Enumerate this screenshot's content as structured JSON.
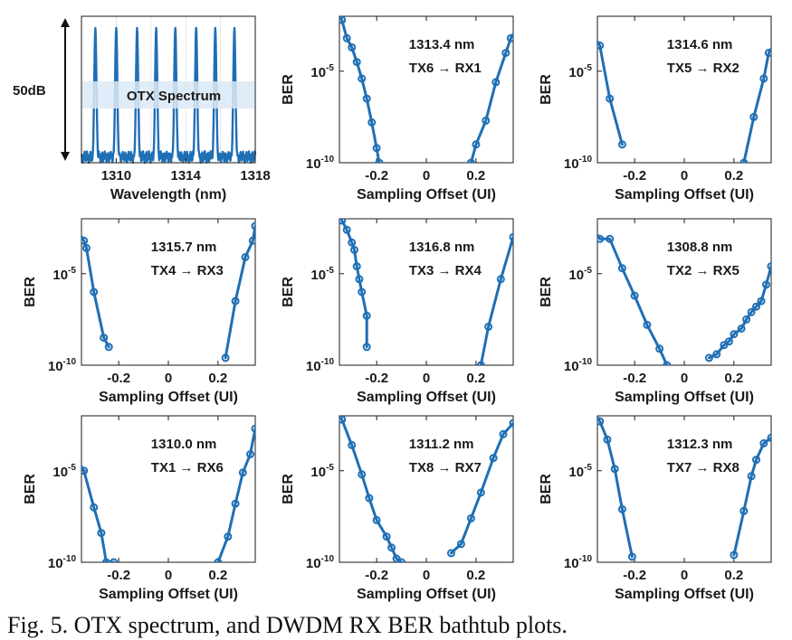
{
  "caption": "Fig. 5. OTX spectrum, and DWDM RX BER bathtub plots.",
  "colors": {
    "series": "#1f6fb5",
    "band": "#dbe9f6",
    "axes": "#1a1a1a"
  },
  "chart_data": [
    {
      "type": "line",
      "annotation": "OTX Spectrum",
      "scale_label": "50dB",
      "xlabel": "Wavelength (nm)",
      "xlim": [
        1308,
        1318
      ],
      "xticks": [
        "1310",
        "1314",
        "1318"
      ],
      "peaks_nm": [
        1308.8,
        1310.0,
        1311.2,
        1312.3,
        1313.4,
        1314.6,
        1315.7,
        1316.8
      ],
      "peak_level_db": 46,
      "floor_level_db": 2,
      "grid": true
    },
    {
      "type": "line",
      "wavelength": "1313.4 nm",
      "link": "TX6 → RX1",
      "xlabel": "Sampling Offset (UI)",
      "ylabel": "BER",
      "xlim": [
        -0.35,
        0.35
      ],
      "ylim_exp": [
        -10,
        -2
      ],
      "log_y": true,
      "xticks": [
        "-0.2",
        "0",
        "0.2"
      ],
      "yticks": [
        "10",
        "10"
      ],
      "ytick_exps": [
        "-5",
        "-10"
      ],
      "left": [
        [
          -0.34,
          -2.2
        ],
        [
          -0.32,
          -3.2
        ],
        [
          -0.3,
          -3.7
        ],
        [
          -0.28,
          -4.5
        ],
        [
          -0.26,
          -5.4
        ],
        [
          -0.24,
          -6.5
        ],
        [
          -0.22,
          -7.8
        ],
        [
          -0.2,
          -9.2
        ],
        [
          -0.19,
          -10.0
        ]
      ],
      "right": [
        [
          0.18,
          -10.0
        ],
        [
          0.2,
          -9.0
        ],
        [
          0.24,
          -7.7
        ],
        [
          0.28,
          -5.6
        ],
        [
          0.32,
          -4.0
        ],
        [
          0.34,
          -3.2
        ]
      ]
    },
    {
      "type": "line",
      "wavelength": "1314.6 nm",
      "link": "TX5 → RX2",
      "xlabel": "Sampling Offset (UI)",
      "ylabel": "BER",
      "xlim": [
        -0.35,
        0.35
      ],
      "ylim_exp": [
        -10,
        -2
      ],
      "log_y": true,
      "xticks": [
        "-0.2",
        "0",
        "0.2"
      ],
      "yticks": [
        "10",
        "10"
      ],
      "ytick_exps": [
        "-5",
        "-10"
      ],
      "left": [
        [
          -0.34,
          -3.6
        ],
        [
          -0.3,
          -6.5
        ],
        [
          -0.25,
          -9.0
        ]
      ],
      "right": [
        [
          0.24,
          -10.0
        ],
        [
          0.28,
          -7.5
        ],
        [
          0.32,
          -5.4
        ],
        [
          0.34,
          -4.0
        ]
      ]
    },
    {
      "type": "line",
      "wavelength": "1315.7 nm",
      "link": "TX4 → RX3",
      "xlabel": "Sampling Offset (UI)",
      "ylabel": "BER",
      "xlim": [
        -0.35,
        0.35
      ],
      "ylim_exp": [
        -10,
        -2
      ],
      "log_y": true,
      "xticks": [
        "-0.2",
        "0",
        "0.2"
      ],
      "yticks": [
        "10",
        "10"
      ],
      "ytick_exps": [
        "-5",
        "-10"
      ],
      "left": [
        [
          -0.34,
          -3.2
        ],
        [
          -0.33,
          -3.6
        ],
        [
          -0.3,
          -6.0
        ],
        [
          -0.26,
          -8.5
        ],
        [
          -0.24,
          -9.0
        ]
      ],
      "right": [
        [
          0.23,
          -9.6
        ],
        [
          0.27,
          -6.5
        ],
        [
          0.31,
          -4.1
        ],
        [
          0.34,
          -3.2
        ],
        [
          0.35,
          -2.4
        ]
      ]
    },
    {
      "type": "line",
      "wavelength": "1316.8 nm",
      "link": "TX3 → RX4",
      "xlabel": "Sampling Offset (UI)",
      "ylabel": "BER",
      "xlim": [
        -0.35,
        0.35
      ],
      "ylim_exp": [
        -10,
        -2
      ],
      "log_y": true,
      "xticks": [
        "-0.2",
        "0",
        "0.2"
      ],
      "yticks": [
        "10",
        "10"
      ],
      "ytick_exps": [
        "-5",
        "-10"
      ],
      "left": [
        [
          -0.34,
          -2.1
        ],
        [
          -0.32,
          -2.6
        ],
        [
          -0.3,
          -3.3
        ],
        [
          -0.29,
          -3.7
        ],
        [
          -0.28,
          -4.6
        ],
        [
          -0.27,
          -5.3
        ],
        [
          -0.26,
          -6.0
        ],
        [
          -0.24,
          -7.3
        ],
        [
          -0.24,
          -9.0
        ]
      ],
      "right": [
        [
          0.22,
          -10.0
        ],
        [
          0.25,
          -7.9
        ],
        [
          0.3,
          -5.3
        ],
        [
          0.35,
          -3.0
        ]
      ]
    },
    {
      "type": "line",
      "wavelength": "1308.8 nm",
      "link": "TX2 → RX5",
      "xlabel": "Sampling Offset (UI)",
      "ylabel": "BER",
      "xlim": [
        -0.35,
        0.35
      ],
      "ylim_exp": [
        -10,
        -2
      ],
      "log_y": true,
      "xticks": [
        "-0.2",
        "0",
        "0.2"
      ],
      "yticks": [
        "10",
        "10"
      ],
      "ytick_exps": [
        "-5",
        "-10"
      ],
      "left": [
        [
          -0.34,
          -3.1
        ],
        [
          -0.3,
          -3.1
        ],
        [
          -0.25,
          -4.7
        ],
        [
          -0.2,
          -6.2
        ],
        [
          -0.15,
          -7.8
        ],
        [
          -0.1,
          -9.1
        ],
        [
          -0.07,
          -10.0
        ]
      ],
      "right": [
        [
          0.1,
          -9.6
        ],
        [
          0.13,
          -9.4
        ],
        [
          0.16,
          -8.9
        ],
        [
          0.18,
          -8.7
        ],
        [
          0.2,
          -8.3
        ],
        [
          0.23,
          -8.0
        ],
        [
          0.25,
          -7.5
        ],
        [
          0.27,
          -7.1
        ],
        [
          0.29,
          -6.8
        ],
        [
          0.31,
          -6.5
        ],
        [
          0.33,
          -5.6
        ],
        [
          0.35,
          -4.6
        ]
      ]
    },
    {
      "type": "line",
      "wavelength": "1310.0 nm",
      "link": "TX1 → RX6",
      "xlabel": "Sampling Offset (UI)",
      "ylabel": "BER",
      "xlim": [
        -0.35,
        0.35
      ],
      "ylim_exp": [
        -10,
        -2
      ],
      "log_y": true,
      "xticks": [
        "-0.2",
        "0",
        "0.2"
      ],
      "yticks": [
        "10",
        "10"
      ],
      "ytick_exps": [
        "-5",
        "-10"
      ],
      "left": [
        [
          -0.34,
          -5.0
        ],
        [
          -0.3,
          -7.0
        ],
        [
          -0.27,
          -8.4
        ],
        [
          -0.25,
          -10.0
        ],
        [
          -0.22,
          -10.0
        ]
      ],
      "right": [
        [
          0.2,
          -10.0
        ],
        [
          0.24,
          -8.6
        ],
        [
          0.27,
          -6.8
        ],
        [
          0.3,
          -5.1
        ],
        [
          0.33,
          -4.1
        ],
        [
          0.35,
          -2.7
        ]
      ]
    },
    {
      "type": "line",
      "wavelength": "1311.2 nm",
      "link": "TX8 → RX7",
      "xlabel": "Sampling Offset (UI)",
      "ylabel": "BER",
      "xlim": [
        -0.35,
        0.35
      ],
      "ylim_exp": [
        -10,
        -2
      ],
      "log_y": true,
      "xticks": [
        "-0.2",
        "0",
        "0.2"
      ],
      "yticks": [
        "10",
        "10"
      ],
      "ytick_exps": [
        "-5",
        "-10"
      ],
      "left": [
        [
          -0.34,
          -2.2
        ],
        [
          -0.3,
          -3.6
        ],
        [
          -0.26,
          -5.2
        ],
        [
          -0.23,
          -6.5
        ],
        [
          -0.2,
          -7.7
        ],
        [
          -0.16,
          -8.6
        ],
        [
          -0.14,
          -9.2
        ],
        [
          -0.12,
          -9.8
        ],
        [
          -0.1,
          -10.0
        ]
      ],
      "right": [
        [
          0.1,
          -9.5
        ],
        [
          0.14,
          -9.0
        ],
        [
          0.18,
          -7.6
        ],
        [
          0.22,
          -6.2
        ],
        [
          0.27,
          -4.3
        ],
        [
          0.31,
          -3.0
        ],
        [
          0.35,
          -2.4
        ]
      ]
    },
    {
      "type": "line",
      "wavelength": "1312.3 nm",
      "link": "TX7 → RX8",
      "xlabel": "Sampling Offset (UI)",
      "ylabel": "BER",
      "xlim": [
        -0.35,
        0.35
      ],
      "ylim_exp": [
        -10,
        -2
      ],
      "log_y": true,
      "xticks": [
        "-0.2",
        "0",
        "0.2"
      ],
      "yticks": [
        "10",
        "10"
      ],
      "ytick_exps": [
        "-5",
        "-10"
      ],
      "left": [
        [
          -0.34,
          -2.3
        ],
        [
          -0.31,
          -3.3
        ],
        [
          -0.28,
          -4.9
        ],
        [
          -0.25,
          -7.1
        ],
        [
          -0.21,
          -9.7
        ]
      ],
      "right": [
        [
          0.2,
          -9.6
        ],
        [
          0.24,
          -7.2
        ],
        [
          0.27,
          -5.3
        ],
        [
          0.29,
          -4.4
        ],
        [
          0.32,
          -3.5
        ],
        [
          0.35,
          -3.2
        ]
      ]
    }
  ]
}
